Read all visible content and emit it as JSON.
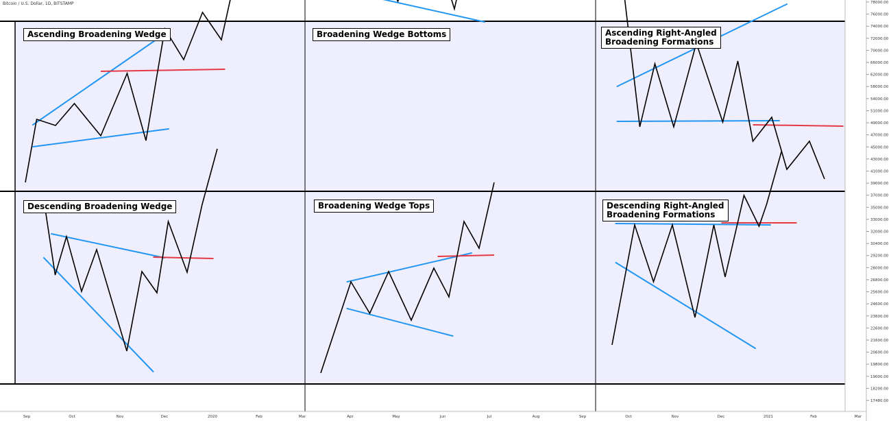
{
  "symbol_info": "Bitcoin / U.S. Dollar, 1D, BITSTAMP",
  "price_axis_labels": [
    "78000.00",
    "76000.00",
    "74000.00",
    "72000.00",
    "70000.00",
    "66000.00",
    "62000.00",
    "58000.00",
    "54000.00",
    "51000.00",
    "49000.00",
    "47000.00",
    "45000.00",
    "43000.00",
    "41000.00",
    "39000.00",
    "37000.00",
    "35000.00",
    "33000.00",
    "32000.00",
    "30400.00",
    "29200.00",
    "28000.00",
    "26800.00",
    "25600.00",
    "24600.00",
    "23600.00",
    "22600.00",
    "21600.00",
    "20600.00",
    "19800.00",
    "19000.00",
    "18200.00",
    "17480.00"
  ],
  "time_axis_labels": [
    "Sep",
    "Oct",
    "Nov",
    "Dec",
    "2020",
    "Feb",
    "Mar",
    "Apr",
    "May",
    "Jun",
    "Jul",
    "Aug",
    "Sep",
    "Oct",
    "Nov",
    "Dec",
    "2021",
    "Feb",
    "Mar"
  ],
  "colors": {
    "panel_bg": "#eeeefc",
    "price_line": "#000000",
    "trendline": "#2196f3",
    "breakout_level": "#e53945",
    "frame": "#000000"
  },
  "chart_data": [
    {
      "type": "line",
      "title": "Ascending Broadening Wedge",
      "series": [
        {
          "x": [
            0,
            3,
            8,
            13,
            20,
            27,
            32,
            37,
            42,
            47,
            52,
            57,
            63
          ],
          "y": [
            4,
            96,
            87,
            119,
            72,
            163,
            65,
            228,
            183,
            252,
            212,
            336,
            413
          ]
        }
      ],
      "trendlines": [
        {
          "x": [
            2,
            36
          ],
          "y": [
            88,
            217
          ]
        },
        {
          "x": [
            2,
            38
          ],
          "y": [
            56,
            82
          ]
        }
      ],
      "breakout_levels": [
        {
          "x": [
            20,
            53
          ],
          "y": [
            166,
            169
          ]
        }
      ]
    },
    {
      "type": "line",
      "title": "Broadening Wedge Bottoms",
      "series": [
        {
          "x": [
            0,
            10,
            13,
            21,
            29,
            36,
            42,
            46,
            50,
            55,
            59
          ],
          "y": [
            308,
            82,
            162,
            74,
            187,
            63,
            209,
            166,
            275,
            240,
            354
          ]
        }
      ],
      "trendlines": [
        {
          "x": [
            8,
            56
          ],
          "y": [
            151,
            244
          ]
        },
        {
          "x": [
            8,
            44
          ],
          "y": [
            88,
            44
          ]
        }
      ],
      "breakout_levels": [
        {
          "x": [
            42,
            63
          ],
          "y": [
            240,
            238
          ]
        }
      ]
    },
    {
      "type": "line",
      "title": "Ascending Right-Angled Broadening Formations",
      "series": [
        {
          "x": [
            0,
            5,
            9,
            14,
            20,
            27,
            31,
            35,
            40,
            44,
            50,
            54
          ],
          "y": [
            319,
            86,
            178,
            86,
            208,
            93,
            182,
            65,
            100,
            24,
            65,
            10
          ]
        }
      ],
      "trendlines": [
        {
          "x": [
            -1,
            44
          ],
          "y": [
            145,
            265
          ]
        },
        {
          "x": [
            -1,
            42
          ],
          "y": [
            94,
            95
          ]
        }
      ],
      "breakout_levels": [
        {
          "x": [
            35,
            59
          ],
          "y": [
            89,
            87
          ]
        }
      ]
    },
    {
      "type": "line",
      "title": "Descending Broadening Wedge",
      "series": [
        {
          "x": [
            0,
            3,
            6,
            10,
            14,
            22,
            26,
            30,
            33,
            38,
            42,
            46
          ],
          "y": [
            230,
            121,
            177,
            97,
            158,
            10,
            126,
            95,
            199,
            125,
            224,
            305
          ]
        }
      ],
      "trendlines": [
        {
          "x": [
            2,
            32
          ],
          "y": [
            181,
            146
          ]
        },
        {
          "x": [
            0,
            29
          ],
          "y": [
            146,
            -20
          ]
        }
      ],
      "breakout_levels": [
        {
          "x": [
            29,
            45
          ],
          "y": [
            147,
            145
          ]
        }
      ]
    },
    {
      "type": "line",
      "title": "Broadening Wedge Tops",
      "series": [
        {
          "x": [
            0,
            8,
            13,
            18,
            24,
            30,
            34,
            38,
            42,
            46
          ],
          "y": [
            -3,
            130,
            84,
            145,
            74,
            150,
            108,
            218,
            179,
            275
          ]
        }
      ],
      "trendlines": [
        {
          "x": [
            7,
            40
          ],
          "y": [
            130,
            172
          ]
        },
        {
          "x": [
            7,
            35
          ],
          "y": [
            91,
            51
          ]
        }
      ],
      "breakout_levels": [
        {
          "x": [
            31,
            46
          ],
          "y": [
            167,
            169
          ]
        }
      ]
    },
    {
      "type": "line",
      "title": "Descending Right-Angled Broadening Formations",
      "series": [
        {
          "x": [
            0,
            6,
            11,
            16,
            22,
            27,
            30,
            35,
            39,
            41,
            45
          ],
          "y": [
            20,
            195,
            112,
            195,
            60,
            195,
            119,
            238,
            193,
            225,
            303
          ]
        }
      ],
      "trendlines": [
        {
          "x": [
            1,
            42
          ],
          "y": [
            197,
            195
          ]
        },
        {
          "x": [
            1,
            38
          ],
          "y": [
            140,
            15
          ]
        }
      ],
      "breakout_levels": [
        {
          "x": [
            29,
            49
          ],
          "y": [
            198,
            198
          ]
        }
      ]
    }
  ]
}
